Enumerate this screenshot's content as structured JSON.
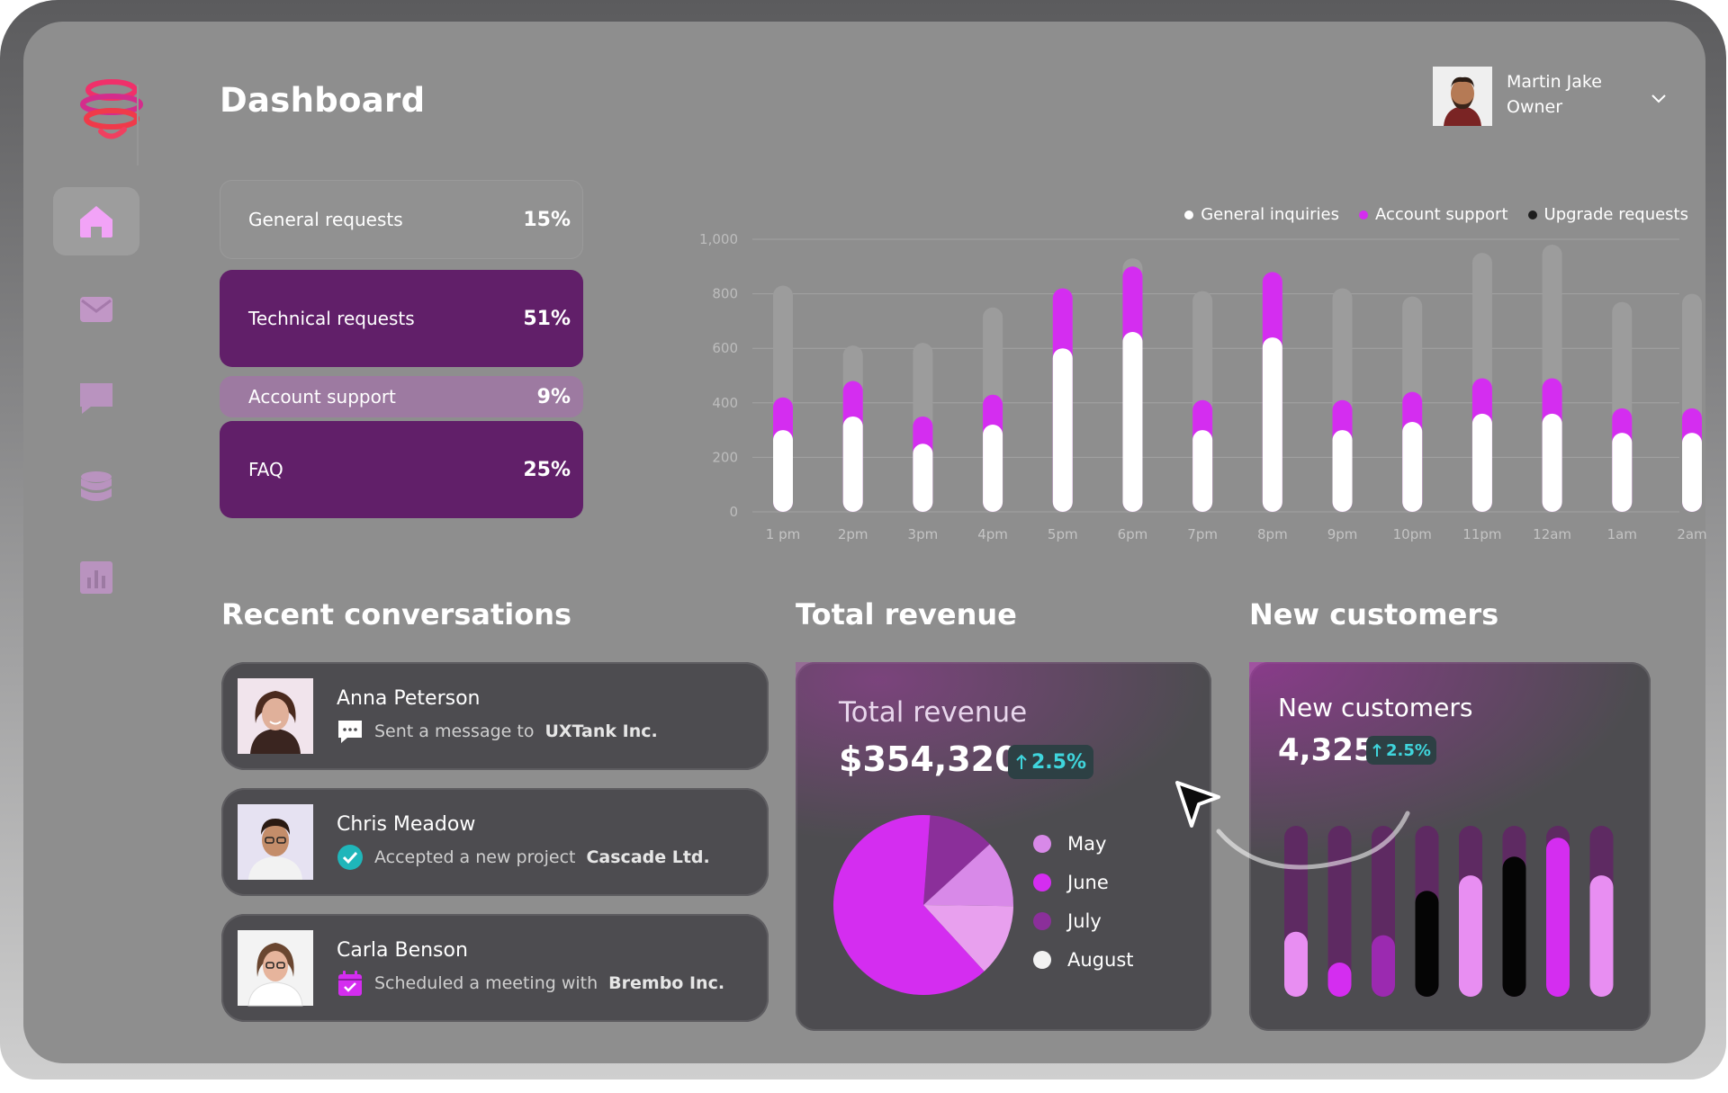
{
  "app": {
    "title": "Dashboard"
  },
  "user": {
    "name": "Martin Jake",
    "role": "Owner"
  },
  "nav": [
    {
      "name": "home",
      "icon": "home-icon",
      "active": true
    },
    {
      "name": "messages",
      "icon": "mail-icon",
      "active": false
    },
    {
      "name": "chat",
      "icon": "chat-icon",
      "active": false
    },
    {
      "name": "database",
      "icon": "database-icon",
      "active": false
    },
    {
      "name": "analytics",
      "icon": "bar-chart-icon",
      "active": false
    }
  ],
  "requests": [
    {
      "label": "General requests",
      "pct": "15%"
    },
    {
      "label": "Technical requests",
      "pct": "51%"
    },
    {
      "label": "Account support",
      "pct": "9%"
    },
    {
      "label": "FAQ",
      "pct": "25%"
    }
  ],
  "colors": {
    "accent": "#d42df0",
    "deep_purple": "#611f69",
    "mid_purple": "#8b2f9a",
    "teal": "#3fd5dc"
  },
  "chart_data": {
    "type": "bar",
    "title": "",
    "xlabel": "",
    "ylabel": "",
    "ylim": [
      0,
      1000
    ],
    "yticks": [
      "0",
      "200",
      "400",
      "600",
      "800",
      "1,000"
    ],
    "categories": [
      "1 pm",
      "2pm",
      "3pm",
      "4pm",
      "5pm",
      "6pm",
      "7pm",
      "8pm",
      "9pm",
      "10pm",
      "11pm",
      "12am",
      "1am",
      "2am"
    ],
    "series": [
      {
        "name": "General inquiries",
        "color": "#ffffff",
        "values": [
          300,
          350,
          250,
          320,
          600,
          660,
          300,
          640,
          300,
          330,
          360,
          360,
          290,
          290
        ]
      },
      {
        "name": "Account support",
        "color": "#d42df0",
        "values": [
          120,
          130,
          100,
          110,
          220,
          240,
          110,
          240,
          110,
          110,
          130,
          130,
          90,
          90
        ]
      },
      {
        "name": "Upgrade requests",
        "color": "#9c9c9c",
        "values": [
          410,
          130,
          270,
          320,
          0,
          30,
          400,
          0,
          410,
          350,
          460,
          490,
          390,
          420
        ]
      }
    ]
  },
  "sections": {
    "conversations": "Recent conversations",
    "revenue": "Total revenue",
    "customers": "New customers"
  },
  "conversations": [
    {
      "name": "Anna Peterson",
      "action": "Sent a message to",
      "company": "UXTank Inc.",
      "icon": "message-icon"
    },
    {
      "name": "Chris Meadow",
      "action": "Accepted a new project",
      "company": "Cascade Ltd.",
      "icon": "check-icon"
    },
    {
      "name": "Carla Benson",
      "action": "Scheduled a meeting with",
      "company": "Brembo Inc.",
      "icon": "calendar-icon"
    }
  ],
  "revenue": {
    "title": "Total revenue",
    "value": "$354,320",
    "change": "2.5%",
    "pie": [
      {
        "label": "May",
        "value": 12,
        "color": "#d889e8"
      },
      {
        "label": "June",
        "value": 63,
        "color": "#d42df0"
      },
      {
        "label": "July",
        "value": 12,
        "color": "#8b2f9a"
      },
      {
        "label": "August",
        "value": 13,
        "color": "#e8a0ee"
      }
    ]
  },
  "customers": {
    "title": "New customers",
    "value": "4,325",
    "change": "2.5%",
    "bars": [
      {
        "value": 0.38,
        "color": "#e88ef2"
      },
      {
        "value": 0.2,
        "color": "#d42df0"
      },
      {
        "value": 0.36,
        "color": "#9b2ab0"
      },
      {
        "value": 0.62,
        "color": "#050505"
      },
      {
        "value": 0.71,
        "color": "#e88ef2"
      },
      {
        "value": 0.82,
        "color": "#050505"
      },
      {
        "value": 0.93,
        "color": "#d42df0"
      },
      {
        "value": 0.71,
        "color": "#e88ef2"
      }
    ]
  }
}
